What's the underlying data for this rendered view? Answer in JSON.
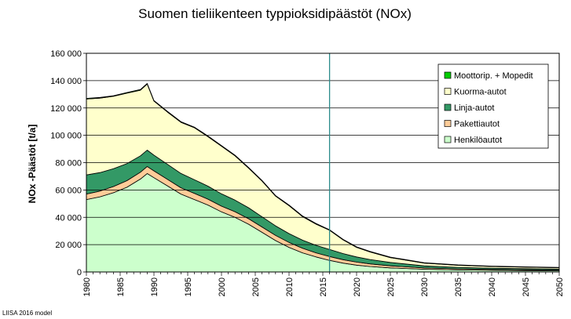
{
  "chart_data": {
    "type": "area",
    "stacked": true,
    "title": "Suomen tieliikenteen typpioksidipäästöt (NOx)",
    "ylabel": "NOx -Päästöt [t/a]",
    "xlabel": "",
    "xlim": [
      1980,
      2050
    ],
    "ylim": [
      0,
      160000
    ],
    "ytick_labels": [
      "0",
      "20 000",
      "40 000",
      "60 000",
      "80 000",
      "100 000",
      "120 000",
      "140 000",
      "160 000"
    ],
    "xtick_labels": [
      "1980",
      "1985",
      "1990",
      "1995",
      "2000",
      "2005",
      "2010",
      "2015",
      "2020",
      "2025",
      "2030",
      "2035",
      "2040",
      "2045",
      "2050"
    ],
    "grid": "horizontal",
    "legend_position": "top-right",
    "marker_year": 2016,
    "x": [
      1980,
      1982,
      1984,
      1986,
      1988,
      1989,
      1990,
      1992,
      1994,
      1996,
      1998,
      2000,
      2002,
      2004,
      2006,
      2008,
      2010,
      2012,
      2014,
      2016,
      2018,
      2020,
      2022,
      2025,
      2030,
      2035,
      2040,
      2045,
      2050
    ],
    "series": [
      {
        "name": "Henkilöautot",
        "color": "#ccffcc",
        "values": [
          53000,
          55000,
          58000,
          62000,
          68000,
          72000,
          69000,
          63000,
          57000,
          53000,
          49000,
          44000,
          40000,
          35000,
          29000,
          23000,
          18000,
          14000,
          11000,
          8500,
          6500,
          5000,
          4000,
          3000,
          2000,
          1500,
          1200,
          1000,
          900
        ]
      },
      {
        "name": "Pakettiautot",
        "color": "#ffcc99",
        "values": [
          4000,
          4200,
          4500,
          4800,
          5000,
          5200,
          5000,
          4800,
          4600,
          4500,
          4300,
          4200,
          4100,
          4000,
          3900,
          3800,
          3600,
          3300,
          3000,
          2800,
          2500,
          2200,
          1900,
          1500,
          1000,
          800,
          700,
          600,
          500
        ]
      },
      {
        "name": "Linja-autot",
        "color": "#339966",
        "values": [
          14000,
          13500,
          13000,
          12500,
          12000,
          12000,
          11500,
          11000,
          10500,
          10000,
          9500,
          9000,
          8500,
          8000,
          7500,
          7000,
          6500,
          6000,
          5500,
          5200,
          4500,
          3800,
          3200,
          2500,
          1500,
          1100,
          900,
          800,
          700
        ]
      },
      {
        "name": "Kuorma-autot",
        "color": "#ffffcc",
        "values": [
          55500,
          54500,
          53000,
          51500,
          48000,
          48300,
          39500,
          38200,
          37400,
          38000,
          36200,
          34800,
          32400,
          29000,
          26100,
          21700,
          20400,
          17200,
          15500,
          14000,
          10000,
          7000,
          5500,
          3500,
          2000,
          1500,
          1200,
          1100,
          1000
        ]
      },
      {
        "name": "Moottorip. + Mopedit",
        "color": "#00cc00",
        "values": [
          500,
          500,
          500,
          500,
          500,
          500,
          500,
          500,
          500,
          500,
          500,
          500,
          500,
          500,
          500,
          500,
          500,
          500,
          500,
          400,
          400,
          400,
          400,
          400,
          300,
          300,
          300,
          300,
          300
        ]
      }
    ]
  },
  "credit": "LIISA 2016 model"
}
